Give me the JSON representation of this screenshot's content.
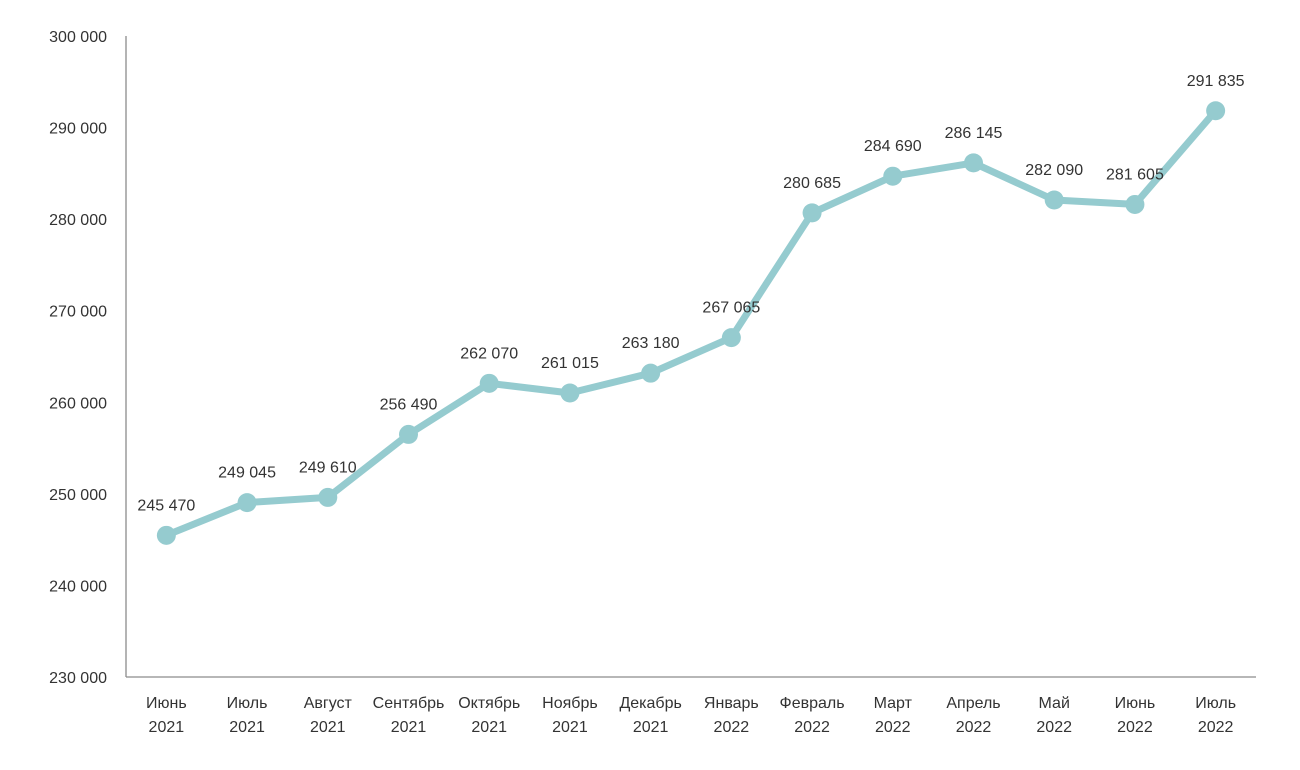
{
  "chart_data": {
    "type": "line",
    "categories": [
      [
        "Июнь",
        "2021"
      ],
      [
        "Июль",
        "2021"
      ],
      [
        "Август",
        "2021"
      ],
      [
        "Сентябрь",
        "2021"
      ],
      [
        "Октябрь",
        "2021"
      ],
      [
        "Ноябрь",
        "2021"
      ],
      [
        "Декабрь",
        "2021"
      ],
      [
        "Январь",
        "2022"
      ],
      [
        "Февраль",
        "2022"
      ],
      [
        "Март",
        "2022"
      ],
      [
        "Апрель",
        "2022"
      ],
      [
        "Май",
        "2022"
      ],
      [
        "Июнь",
        "2022"
      ],
      [
        "Июль",
        "2022"
      ]
    ],
    "values": [
      245470,
      249045,
      249610,
      256490,
      262070,
      261015,
      263180,
      267065,
      280685,
      284690,
      286145,
      282090,
      281605,
      291835
    ],
    "data_labels": [
      "245 470",
      "249 045",
      "249 610",
      "256 490",
      "262 070",
      "261 015",
      "263 180",
      "267 065",
      "280 685",
      "284 690",
      "286 145",
      "282 090",
      "281 605",
      "291 835"
    ],
    "y_ticks": [
      230000,
      240000,
      250000,
      260000,
      270000,
      280000,
      290000,
      300000
    ],
    "y_tick_labels": [
      "230 000",
      "240 000",
      "250 000",
      "260 000",
      "270 000",
      "280 000",
      "290 000",
      "300 000"
    ],
    "ylim": [
      230000,
      300000
    ],
    "grid": false,
    "legend": "none",
    "colors": {
      "line": "#95cbcf",
      "marker": "#95cbcf",
      "axis": "#8c8c8c",
      "text": "#333333"
    }
  }
}
